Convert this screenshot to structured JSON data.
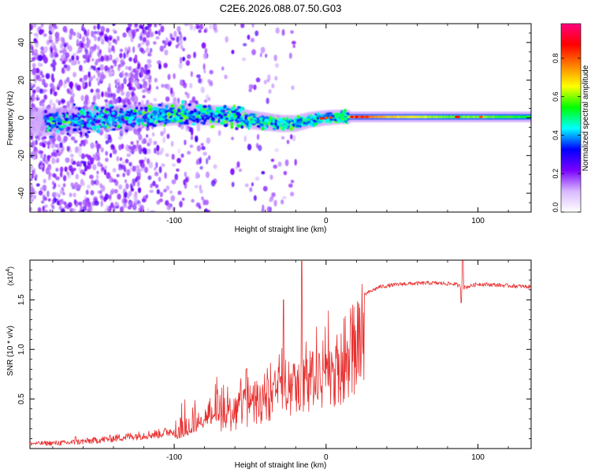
{
  "title": "C2E6.2026.088.07.50.G03",
  "chart_data": [
    {
      "type": "heatmap",
      "xlabel": "Height of straight line (km)",
      "ylabel": "Frequency (Hz)",
      "xlim": [
        -195,
        135
      ],
      "ylim": [
        -50,
        50
      ],
      "xticks": [
        -100,
        0,
        100
      ],
      "yticks": [
        -40,
        -20,
        0,
        20,
        40
      ],
      "colorbar": {
        "label": "Normalized spectral amplitude",
        "range": [
          0,
          1
        ],
        "ticks": [
          "0.0",
          "0.2",
          "0.4",
          "0.6",
          "0.8"
        ],
        "colors": [
          "#ffffff",
          "#d8b8ff",
          "#7a00ff",
          "#0000ff",
          "#00ffff",
          "#00ff00",
          "#ffff00",
          "#ff8000",
          "#ff0000",
          "#ff0080"
        ]
      },
      "ridge_center_hz": [
        [
          -180,
          -2
        ],
        [
          -140,
          0
        ],
        [
          -100,
          2
        ],
        [
          -80,
          1.5
        ],
        [
          -60,
          1
        ],
        [
          -50,
          -1
        ],
        [
          -40,
          -2
        ],
        [
          -30,
          -3
        ],
        [
          -20,
          -3
        ],
        [
          -10,
          -1
        ],
        [
          0,
          0
        ],
        [
          10,
          0.5
        ],
        [
          20,
          0.5
        ],
        [
          60,
          0.5
        ],
        [
          130,
          0.5
        ]
      ]
    },
    {
      "type": "line",
      "xlabel": "Height of straight line (km)",
      "ylabel": "SNR (10 * v/v)",
      "yscale_label": "(x10",
      "yscale_exp": "4",
      "xlim": [
        -195,
        135
      ],
      "ylim": [
        0,
        1.9
      ],
      "xticks": [
        -100,
        0,
        100
      ],
      "yticks": [
        "0.5",
        "1.0",
        "1.5"
      ],
      "color": "#e8302f",
      "envelope": [
        [
          -195,
          0.03
        ],
        [
          -170,
          0.03
        ],
        [
          -150,
          0.05
        ],
        [
          -130,
          0.08
        ],
        [
          -110,
          0.1
        ],
        [
          -95,
          0.15
        ],
        [
          -85,
          0.25
        ],
        [
          -75,
          0.35
        ],
        [
          -65,
          0.45
        ],
        [
          -55,
          0.6
        ],
        [
          -45,
          0.7
        ],
        [
          -35,
          0.75
        ],
        [
          -25,
          0.85
        ],
        [
          -15,
          0.95
        ],
        [
          -5,
          1.05
        ],
        [
          5,
          1.2
        ],
        [
          15,
          1.4
        ],
        [
          25,
          1.55
        ],
        [
          35,
          1.63
        ],
        [
          50,
          1.66
        ],
        [
          70,
          1.67
        ],
        [
          85,
          1.66
        ],
        [
          90,
          1.62
        ],
        [
          100,
          1.66
        ],
        [
          135,
          1.63
        ]
      ],
      "spikes": [
        [
          -165,
          0.12
        ],
        [
          -16,
          1.89
        ],
        [
          -28,
          1.5
        ],
        [
          90,
          1.91
        ],
        [
          89,
          1.47
        ]
      ]
    }
  ]
}
